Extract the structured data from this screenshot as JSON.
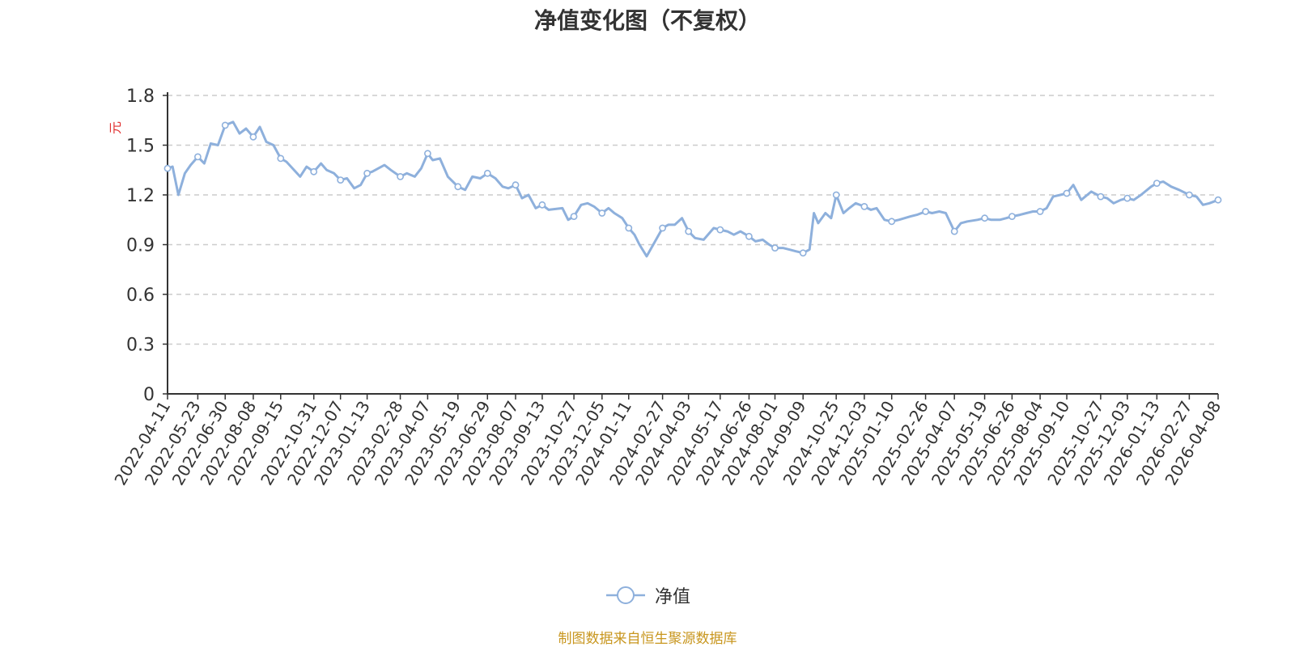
{
  "colors": {
    "series": "#8eb0dc",
    "grid": "#cccccc",
    "axis": "#333333",
    "ylabel": "#e03030",
    "source": "#c8961e"
  },
  "source_note": "制图数据来自恒生聚源数据库",
  "chart_data": {
    "type": "line",
    "title": "净值变化图（不复权）",
    "xlabel": "",
    "ylabel": "元",
    "ylim": [
      0,
      1.8
    ],
    "yticks": [
      0,
      0.3,
      0.6,
      0.9,
      1.2,
      1.5,
      1.8
    ],
    "ytick_labels": [
      "0",
      "0.3",
      "0.6",
      "0.9",
      "1.2",
      "1.5",
      "1.8"
    ],
    "grid": true,
    "legend_position": "bottom-center",
    "x_tick_labels": [
      "2022-04-11",
      "2022-05-23",
      "2022-06-30",
      "2022-08-08",
      "2022-09-15",
      "2022-10-31",
      "2022-12-07",
      "2023-01-13",
      "2023-02-28",
      "2023-04-07",
      "2023-05-19",
      "2023-06-29",
      "2023-08-07",
      "2023-09-13",
      "2023-10-27",
      "2023-12-05",
      "2024-01-11",
      "2024-02-27",
      "2024-04-03",
      "2024-05-17",
      "2024-06-26",
      "2024-08-01",
      "2024-09-09",
      "2024-10-25",
      "2024-12-03",
      "2025-01-10",
      "2025-02-26",
      "2025-04-07",
      "2025-05-19",
      "2025-06-26",
      "2025-08-04",
      "2025-09-10",
      "2025-10-27",
      "2025-12-03",
      "2026-01-13",
      "2026-02-27",
      "2026-04-08"
    ],
    "series": [
      {
        "name": "净值",
        "x": [
          "2022-04-11",
          "2022-04-18",
          "2022-04-26",
          "2022-05-05",
          "2022-05-13",
          "2022-05-23",
          "2022-06-01",
          "2022-06-10",
          "2022-06-20",
          "2022-06-30",
          "2022-07-11",
          "2022-07-20",
          "2022-07-29",
          "2022-08-08",
          "2022-08-17",
          "2022-08-26",
          "2022-09-05",
          "2022-09-15",
          "2022-09-23",
          "2022-10-12",
          "2022-10-21",
          "2022-10-31",
          "2022-11-10",
          "2022-11-18",
          "2022-11-28",
          "2022-12-07",
          "2022-12-16",
          "2022-12-26",
          "2023-01-04",
          "2023-01-13",
          "2023-01-20",
          "2023-02-06",
          "2023-02-15",
          "2023-02-28",
          "2023-03-09",
          "2023-03-20",
          "2023-03-29",
          "2023-04-07",
          "2023-04-14",
          "2023-04-24",
          "2023-05-05",
          "2023-05-19",
          "2023-05-29",
          "2023-06-08",
          "2023-06-19",
          "2023-06-29",
          "2023-07-10",
          "2023-07-20",
          "2023-07-28",
          "2023-08-07",
          "2023-08-16",
          "2023-08-25",
          "2023-09-04",
          "2023-09-13",
          "2023-09-22",
          "2023-10-11",
          "2023-10-19",
          "2023-10-27",
          "2023-11-06",
          "2023-11-15",
          "2023-11-24",
          "2023-12-05",
          "2023-12-14",
          "2023-12-22",
          "2024-01-02",
          "2024-01-11",
          "2024-01-19",
          "2024-01-26",
          "2024-02-05",
          "2024-02-27",
          "2024-03-06",
          "2024-03-15",
          "2024-03-25",
          "2024-04-03",
          "2024-04-12",
          "2024-04-24",
          "2024-05-08",
          "2024-05-17",
          "2024-05-27",
          "2024-06-05",
          "2024-06-14",
          "2024-06-26",
          "2024-07-05",
          "2024-07-15",
          "2024-07-24",
          "2024-08-01",
          "2024-08-12",
          "2024-08-21",
          "2024-08-30",
          "2024-09-09",
          "2024-09-18",
          "2024-09-24",
          "2024-09-30",
          "2024-10-10",
          "2024-10-18",
          "2024-10-25",
          "2024-11-04",
          "2024-11-12",
          "2024-11-21",
          "2024-12-03",
          "2024-12-12",
          "2024-12-20",
          "2024-12-31",
          "2025-01-10",
          "2025-01-20",
          "2025-02-05",
          "2025-02-14",
          "2025-02-26",
          "2025-03-07",
          "2025-03-17",
          "2025-03-26",
          "2025-04-07",
          "2025-04-16",
          "2025-04-25",
          "2025-05-09",
          "2025-05-19",
          "2025-05-28",
          "2025-06-09",
          "2025-06-18",
          "2025-06-26",
          "2025-07-07",
          "2025-07-16",
          "2025-07-25",
          "2025-08-04",
          "2025-08-13",
          "2025-08-22",
          "2025-09-01",
          "2025-09-10",
          "2025-09-19",
          "2025-09-30",
          "2025-10-14",
          "2025-10-27",
          "2025-11-05",
          "2025-11-14",
          "2025-11-24",
          "2025-12-03",
          "2025-12-12",
          "2025-12-22",
          "2026-01-05",
          "2026-01-13",
          "2026-01-22",
          "2026-02-02",
          "2026-02-13",
          "2026-02-27",
          "2026-03-09",
          "2026-03-18",
          "2026-03-27",
          "2026-04-08"
        ],
        "values": [
          1.36,
          1.37,
          1.2,
          1.33,
          1.38,
          1.43,
          1.39,
          1.51,
          1.5,
          1.62,
          1.64,
          1.57,
          1.6,
          1.55,
          1.61,
          1.52,
          1.5,
          1.42,
          1.4,
          1.31,
          1.37,
          1.34,
          1.39,
          1.35,
          1.33,
          1.29,
          1.3,
          1.24,
          1.26,
          1.33,
          1.34,
          1.38,
          1.35,
          1.31,
          1.33,
          1.31,
          1.36,
          1.45,
          1.41,
          1.42,
          1.31,
          1.25,
          1.23,
          1.31,
          1.3,
          1.33,
          1.3,
          1.25,
          1.24,
          1.26,
          1.18,
          1.2,
          1.12,
          1.14,
          1.11,
          1.12,
          1.05,
          1.07,
          1.14,
          1.15,
          1.13,
          1.09,
          1.12,
          1.09,
          1.06,
          1.0,
          0.96,
          0.9,
          0.83,
          1.0,
          1.02,
          1.02,
          1.06,
          0.98,
          0.94,
          0.93,
          1.0,
          0.99,
          0.98,
          0.96,
          0.98,
          0.95,
          0.92,
          0.93,
          0.9,
          0.88,
          0.88,
          0.87,
          0.86,
          0.85,
          0.87,
          1.09,
          1.03,
          1.09,
          1.06,
          1.2,
          1.09,
          1.12,
          1.15,
          1.13,
          1.11,
          1.12,
          1.05,
          1.04,
          1.05,
          1.07,
          1.08,
          1.1,
          1.09,
          1.1,
          1.09,
          0.98,
          1.03,
          1.04,
          1.05,
          1.06,
          1.05,
          1.05,
          1.06,
          1.07,
          1.08,
          1.09,
          1.1,
          1.1,
          1.12,
          1.19,
          1.2,
          1.21,
          1.26,
          1.17,
          1.22,
          1.19,
          1.18,
          1.15,
          1.17,
          1.18,
          1.17,
          1.2,
          1.25,
          1.27,
          1.28,
          1.25,
          1.23,
          1.2,
          1.19,
          1.14,
          1.15,
          1.17
        ]
      }
    ]
  }
}
